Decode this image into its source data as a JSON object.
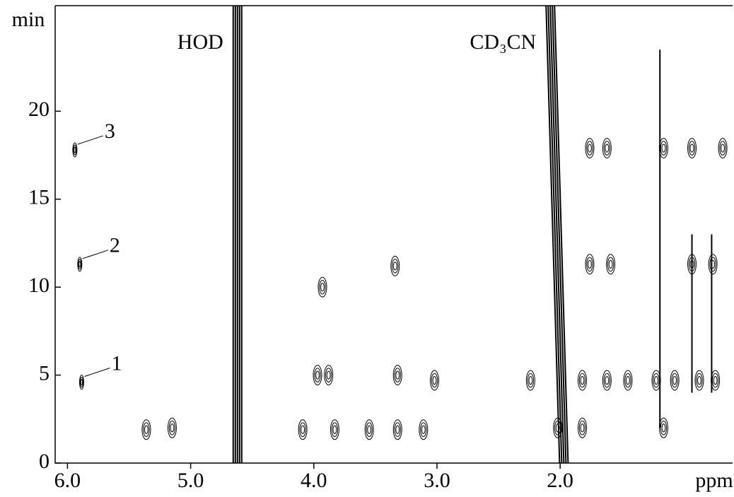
{
  "chart_data": {
    "type": "contour",
    "x_label": "ppm",
    "y_label": "min",
    "color": "#000000",
    "xlim": [
      6.1,
      0.6
    ],
    "ylim": [
      0,
      26
    ],
    "xticks": [
      {
        "value": 6,
        "label": "6.0"
      },
      {
        "value": 5,
        "label": "5.0"
      },
      {
        "value": 4,
        "label": "4.0"
      },
      {
        "value": 3,
        "label": "3.0"
      },
      {
        "value": 2,
        "label": "2.0"
      }
    ],
    "yticks": [
      0,
      5,
      10,
      15,
      20
    ],
    "solvents": {
      "labels": [
        "HOD",
        "CD₃CN"
      ],
      "x_bottom": [
        4.62,
        1.97
      ],
      "x_top": [
        4.62,
        2.08
      ]
    },
    "numbered_peaks": {
      "labels": [
        "1",
        "2",
        "3"
      ],
      "x": [
        5.885,
        5.9,
        5.94
      ],
      "y": [
        4.6,
        11.3,
        17.8
      ]
    },
    "peaks": {
      "x": [
        5.36,
        5.15,
        4.09,
        3.83,
        3.55,
        3.32,
        3.11,
        3.97,
        3.88,
        3.32,
        3.02,
        3.93,
        3.34,
        2.24,
        1.82,
        1.62,
        1.45,
        1.22,
        1.07,
        0.87,
        0.74,
        1.76,
        1.59,
        0.93,
        0.76,
        1.76,
        1.62,
        1.16,
        0.93,
        0.68,
        2.02,
        1.82,
        1.16
      ],
      "y": [
        1.9,
        2.0,
        1.9,
        1.9,
        1.9,
        1.9,
        1.9,
        5.0,
        5.0,
        5.0,
        4.7,
        10.0,
        11.2,
        4.7,
        4.7,
        4.7,
        4.7,
        4.7,
        4.7,
        4.7,
        4.7,
        11.3,
        11.3,
        11.3,
        11.3,
        17.9,
        17.9,
        17.9,
        17.9,
        17.9,
        2.0,
        2.0,
        2.0
      ]
    },
    "ridges": {
      "x": [
        1.19,
        0.93,
        0.77
      ],
      "y_start": [
        2,
        4,
        4
      ],
      "y_end": [
        23.5,
        13,
        13
      ]
    }
  }
}
